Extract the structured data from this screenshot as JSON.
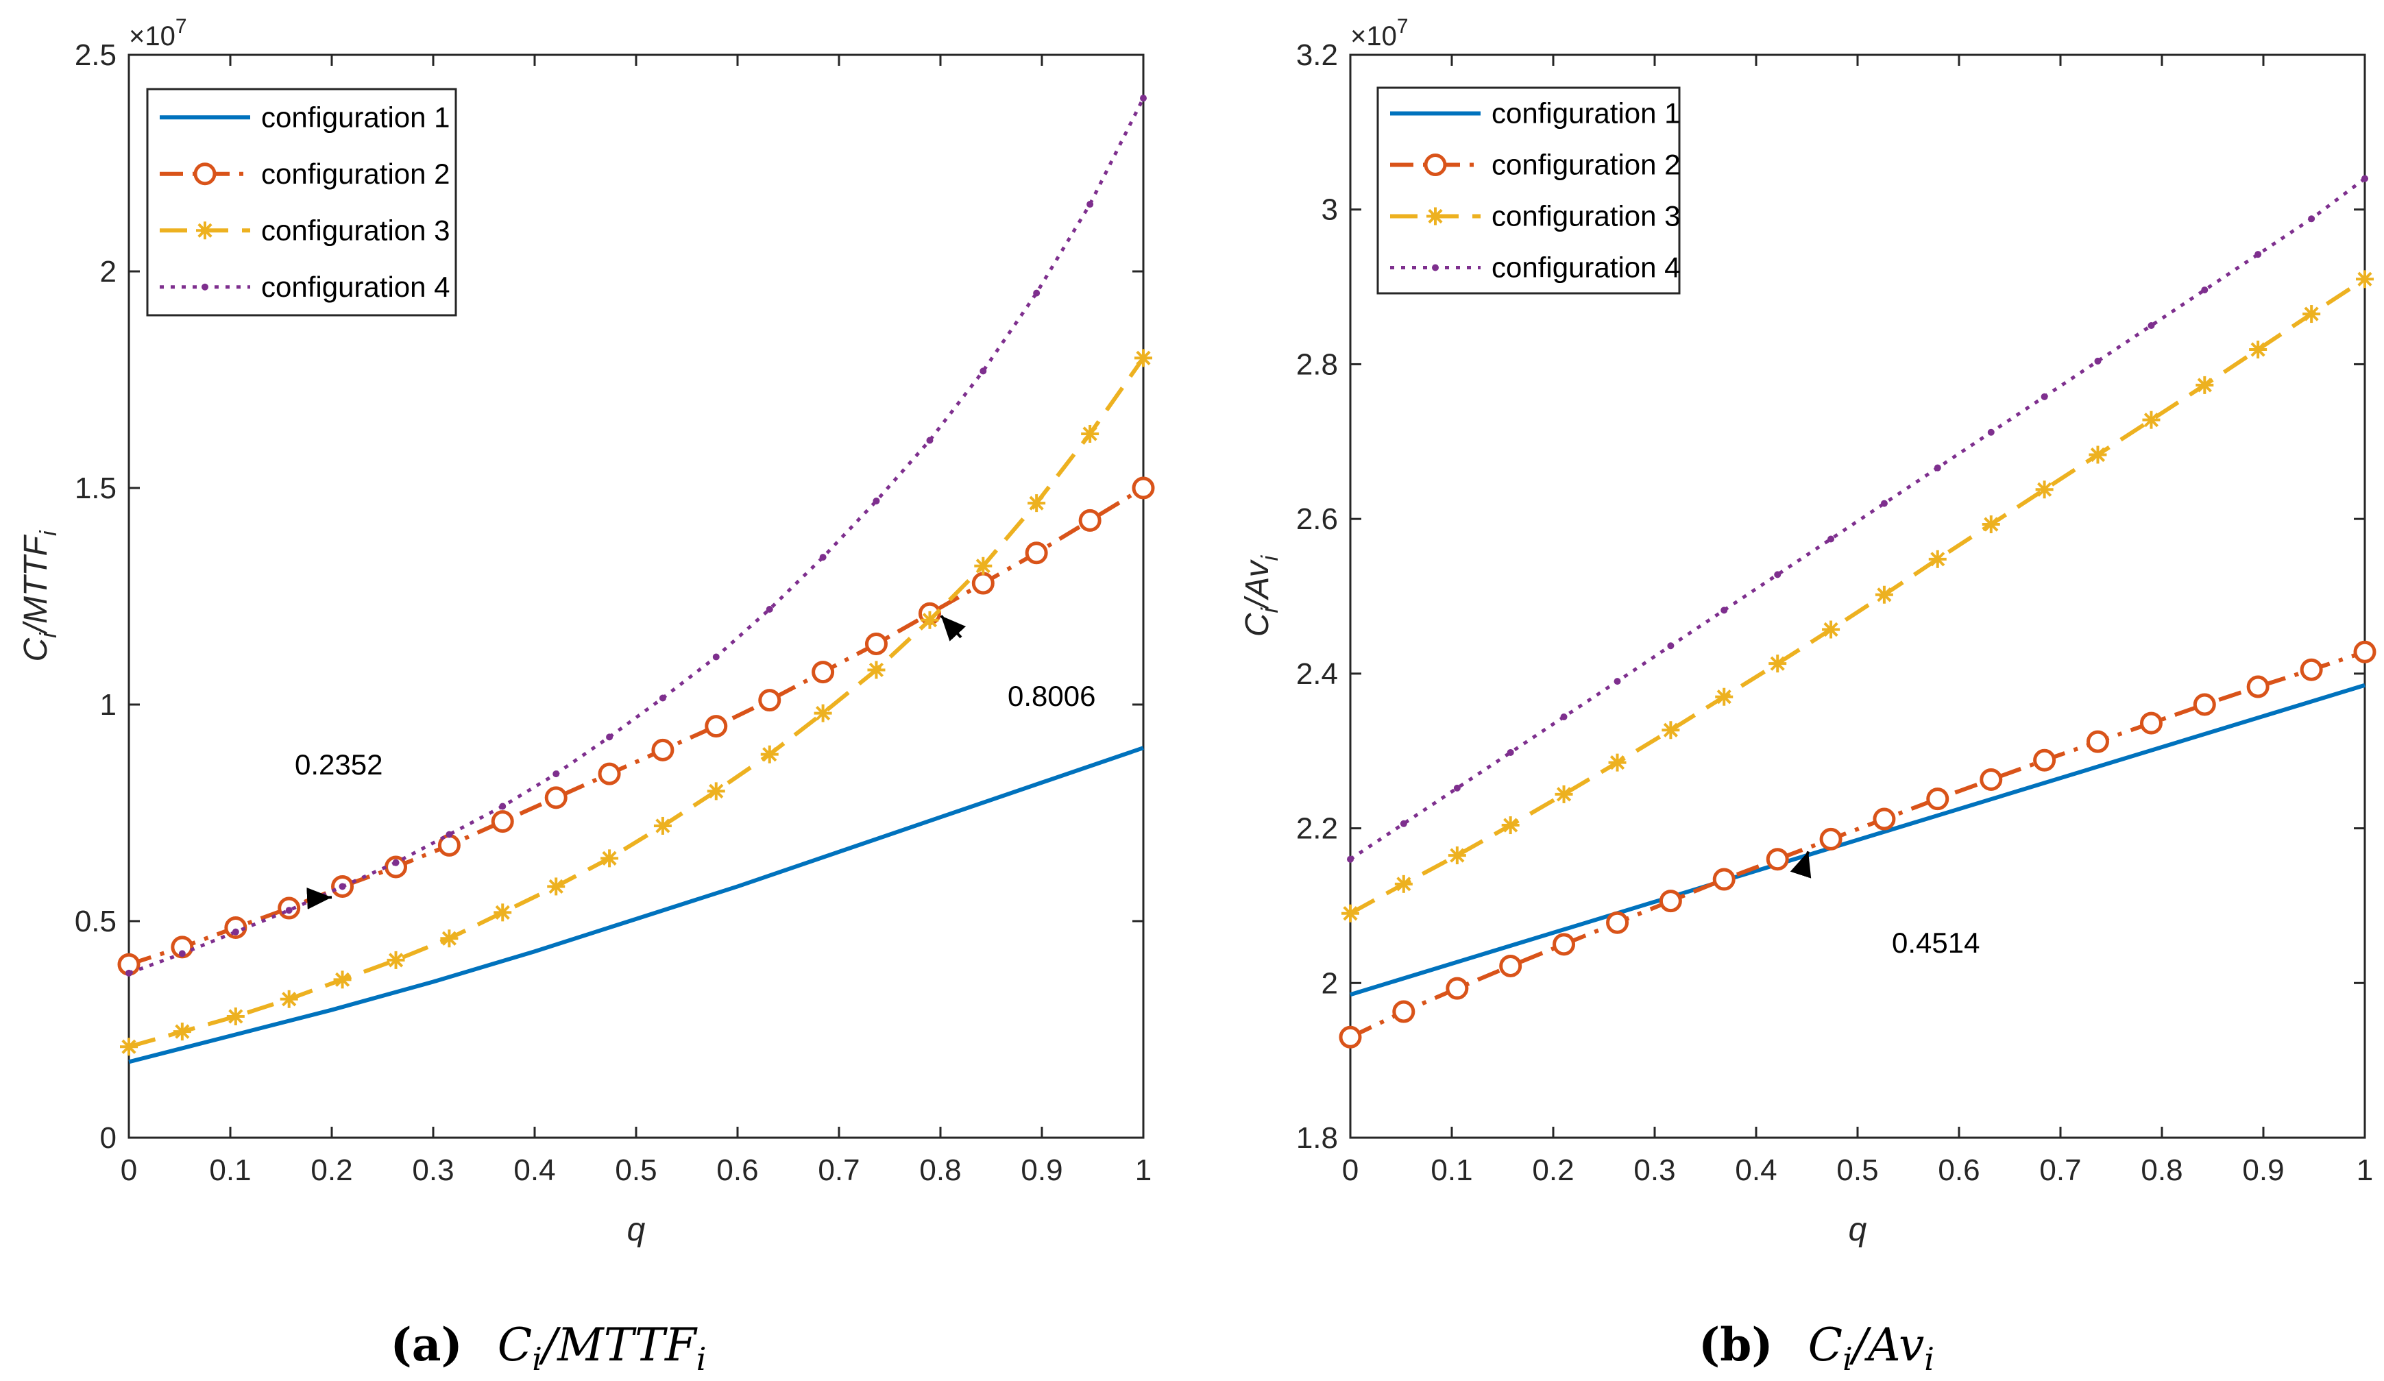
{
  "chart_data": [
    {
      "id": "a",
      "type": "line",
      "xlabel": "q",
      "ylabel_main": "C",
      "ylabel_sub1": "i",
      "ylabel_mid": "/MTTF",
      "ylabel_sub2": "i",
      "exponent_base": "×10",
      "exponent_power": "7",
      "ylim": [
        0,
        2.5
      ],
      "xlim": [
        0,
        1
      ],
      "yticks": [
        "0",
        "0.5",
        "1",
        "1.5",
        "2",
        "2.5"
      ],
      "ytick_values": [
        0,
        0.5,
        1,
        1.5,
        2,
        2.5
      ],
      "xticks": [
        "0",
        "0.1",
        "0.2",
        "0.3",
        "0.4",
        "0.5",
        "0.6",
        "0.7",
        "0.8",
        "0.9",
        "1"
      ],
      "xtick_values": [
        0,
        0.1,
        0.2,
        0.3,
        0.4,
        0.5,
        0.6,
        0.7,
        0.8,
        0.9,
        1
      ],
      "legend_position": "top-left",
      "series": [
        {
          "name": "configuration 1",
          "style": "solid",
          "color": "#0072BD",
          "marker": "none",
          "x": [
            0,
            0.1,
            0.2,
            0.3,
            0.4,
            0.5,
            0.6,
            0.7,
            0.8,
            0.9,
            1
          ],
          "y": [
            0.175,
            0.235,
            0.295,
            0.36,
            0.43,
            0.505,
            0.58,
            0.66,
            0.74,
            0.82,
            0.9
          ]
        },
        {
          "name": "configuration 2",
          "style": "dashdot",
          "color": "#D95319",
          "marker": "circle",
          "x": [
            0,
            0.0526,
            0.1053,
            0.1579,
            0.2105,
            0.2632,
            0.3158,
            0.3684,
            0.4211,
            0.4737,
            0.5263,
            0.5789,
            0.6316,
            0.6842,
            0.7368,
            0.7895,
            0.8421,
            0.8947,
            0.9474,
            1
          ],
          "y": [
            0.4,
            0.44,
            0.485,
            0.53,
            0.58,
            0.625,
            0.675,
            0.73,
            0.785,
            0.84,
            0.895,
            0.95,
            1.01,
            1.075,
            1.14,
            1.21,
            1.28,
            1.35,
            1.425,
            1.5
          ]
        },
        {
          "name": "configuration 3",
          "style": "dashed",
          "color": "#EDB120",
          "marker": "asterisk",
          "x": [
            0,
            0.0526,
            0.1053,
            0.1579,
            0.2105,
            0.2632,
            0.3158,
            0.3684,
            0.4211,
            0.4737,
            0.5263,
            0.5789,
            0.6316,
            0.6842,
            0.7368,
            0.7895,
            0.8421,
            0.8947,
            0.9474,
            1
          ],
          "y": [
            0.21,
            0.245,
            0.28,
            0.32,
            0.365,
            0.41,
            0.46,
            0.52,
            0.58,
            0.645,
            0.72,
            0.8,
            0.885,
            0.98,
            1.08,
            1.195,
            1.32,
            1.465,
            1.625,
            1.8
          ]
        },
        {
          "name": "configuration 4",
          "style": "dotted",
          "color": "#7E2F8E",
          "marker": "dot",
          "x": [
            0,
            0.0526,
            0.1053,
            0.1579,
            0.2105,
            0.2632,
            0.3158,
            0.3684,
            0.4211,
            0.4737,
            0.5263,
            0.5789,
            0.6316,
            0.6842,
            0.7368,
            0.7895,
            0.8421,
            0.8947,
            0.9474,
            1
          ],
          "y": [
            0.38,
            0.425,
            0.475,
            0.525,
            0.58,
            0.635,
            0.7,
            0.765,
            0.84,
            0.925,
            1.015,
            1.11,
            1.22,
            1.34,
            1.47,
            1.61,
            1.77,
            1.95,
            2.155,
            2.4
          ]
        }
      ],
      "annotations": [
        {
          "label": "0.2352",
          "x": 0.2,
          "y": 0.555,
          "dir": "from-top"
        },
        {
          "label": "0.8006",
          "x": 0.8006,
          "y": 1.205,
          "dir": "from-bottom-right"
        }
      ],
      "caption_letter": "(a)",
      "caption_main": "C",
      "caption_sub1": "i",
      "caption_mid": "/MTTF",
      "caption_sub2": "i"
    },
    {
      "id": "b",
      "type": "line",
      "xlabel": "q",
      "ylabel_main": "C",
      "ylabel_sub1": "i",
      "ylabel_mid": "/Av",
      "ylabel_sub2": "i",
      "exponent_base": "×10",
      "exponent_power": "7",
      "ylim": [
        1.8,
        3.2
      ],
      "xlim": [
        0,
        1
      ],
      "yticks": [
        "1.8",
        "2",
        "2.2",
        "2.4",
        "2.6",
        "2.8",
        "3",
        "3.2"
      ],
      "ytick_values": [
        1.8,
        2.0,
        2.2,
        2.4,
        2.6,
        2.8,
        3.0,
        3.2
      ],
      "xticks": [
        "0",
        "0.1",
        "0.2",
        "0.3",
        "0.4",
        "0.5",
        "0.6",
        "0.7",
        "0.8",
        "0.9",
        "1"
      ],
      "xtick_values": [
        0,
        0.1,
        0.2,
        0.3,
        0.4,
        0.5,
        0.6,
        0.7,
        0.8,
        0.9,
        1
      ],
      "legend_position": "top-left",
      "series": [
        {
          "name": "configuration 1",
          "style": "solid",
          "color": "#0072BD",
          "marker": "none",
          "x": [
            0,
            0.25,
            0.5,
            0.75,
            1
          ],
          "y": [
            1.985,
            2.085,
            2.185,
            2.285,
            2.385
          ]
        },
        {
          "name": "configuration 2",
          "style": "dashdot",
          "color": "#D95319",
          "marker": "circle",
          "x": [
            0,
            0.0526,
            0.1053,
            0.1579,
            0.2105,
            0.2632,
            0.3158,
            0.3684,
            0.4211,
            0.4737,
            0.5263,
            0.5789,
            0.6316,
            0.6842,
            0.7368,
            0.7895,
            0.8421,
            0.8947,
            0.9474,
            1
          ],
          "y": [
            1.93,
            1.963,
            1.993,
            2.022,
            2.05,
            2.078,
            2.106,
            2.134,
            2.16,
            2.186,
            2.212,
            2.238,
            2.263,
            2.288,
            2.312,
            2.336,
            2.36,
            2.383,
            2.405,
            2.428
          ]
        },
        {
          "name": "configuration 3",
          "style": "dashed",
          "color": "#EDB120",
          "marker": "asterisk",
          "x": [
            0,
            0.0526,
            0.1053,
            0.1579,
            0.2105,
            0.2632,
            0.3158,
            0.3684,
            0.4211,
            0.4737,
            0.5263,
            0.5789,
            0.6316,
            0.6842,
            0.7368,
            0.7895,
            0.8421,
            0.8947,
            0.9474,
            1
          ],
          "y": [
            2.09,
            2.128,
            2.165,
            2.204,
            2.244,
            2.285,
            2.327,
            2.37,
            2.413,
            2.457,
            2.502,
            2.548,
            2.593,
            2.638,
            2.683,
            2.728,
            2.773,
            2.819,
            2.865,
            2.91
          ]
        },
        {
          "name": "configuration 4",
          "style": "dotted",
          "color": "#7E2F8E",
          "marker": "dot",
          "x": [
            0,
            0.0526,
            0.1053,
            0.1579,
            0.2105,
            0.2632,
            0.3158,
            0.3684,
            0.4211,
            0.4737,
            0.5263,
            0.5789,
            0.6316,
            0.6842,
            0.7368,
            0.7895,
            0.8421,
            0.8947,
            0.9474,
            1
          ],
          "y": [
            2.16,
            2.206,
            2.252,
            2.298,
            2.344,
            2.39,
            2.436,
            2.482,
            2.528,
            2.574,
            2.62,
            2.666,
            2.712,
            2.758,
            2.804,
            2.85,
            2.896,
            2.942,
            2.988,
            3.04
          ]
        }
      ],
      "annotations": [
        {
          "label": "0.4514",
          "x": 0.4514,
          "y": 2.17,
          "dir": "from-bottom-right"
        }
      ],
      "caption_letter": "(b)",
      "caption_main": "C",
      "caption_sub1": "i",
      "caption_mid": "/Av",
      "caption_sub2": "i"
    }
  ]
}
